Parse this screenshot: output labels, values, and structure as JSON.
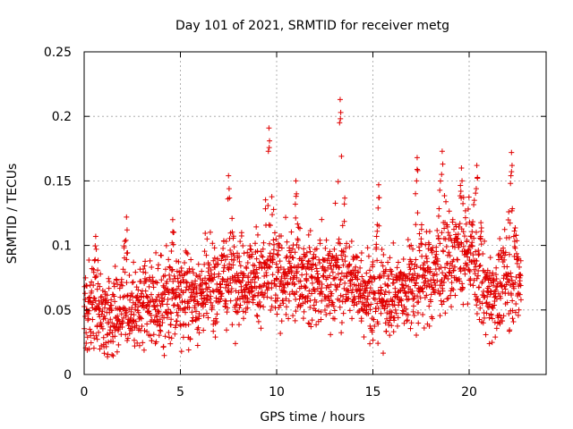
{
  "chart_data": {
    "type": "scatter",
    "title": "Day 101 of 2021, SRMTID for receiver metg",
    "xlabel": "GPS time / hours",
    "ylabel": "SRMTID / TECUs",
    "xlim": [
      0,
      24
    ],
    "ylim": [
      0,
      0.25
    ],
    "x_ticks": [
      0,
      5,
      10,
      15,
      20
    ],
    "x_tick_labels": [
      "0",
      "5",
      "10",
      "15",
      "20"
    ],
    "y_ticks": [
      0,
      0.05,
      0.1,
      0.15,
      0.2,
      0.25
    ],
    "y_tick_labels": [
      "0",
      "0.05",
      "0.1",
      "0.15",
      "0.2",
      "0.25"
    ],
    "grid": true,
    "marker": "+",
    "color": "#e00000",
    "series": [
      {
        "name": "SRMTID",
        "x_range": [
          0,
          22.7
        ],
        "point_count": 2200,
        "baseline_profile": [
          [
            0,
            0.055
          ],
          [
            1,
            0.045
          ],
          [
            2,
            0.05
          ],
          [
            3,
            0.05
          ],
          [
            4,
            0.055
          ],
          [
            5,
            0.06
          ],
          [
            6,
            0.062
          ],
          [
            7,
            0.07
          ],
          [
            8,
            0.075
          ],
          [
            9,
            0.075
          ],
          [
            10,
            0.075
          ],
          [
            11,
            0.075
          ],
          [
            12,
            0.072
          ],
          [
            13,
            0.075
          ],
          [
            14,
            0.072
          ],
          [
            15,
            0.062
          ],
          [
            16,
            0.06
          ],
          [
            17,
            0.07
          ],
          [
            18,
            0.075
          ],
          [
            19,
            0.085
          ],
          [
            20,
            0.09
          ],
          [
            21,
            0.06
          ],
          [
            22,
            0.07
          ],
          [
            22.7,
            0.07
          ]
        ],
        "spread": 0.022,
        "peaks": [
          {
            "x": 0.6,
            "y": 0.107
          },
          {
            "x": 2.2,
            "y": 0.122
          },
          {
            "x": 4.6,
            "y": 0.12
          },
          {
            "x": 7.5,
            "y": 0.154
          },
          {
            "x": 9.6,
            "y": 0.191
          },
          {
            "x": 11.0,
            "y": 0.15
          },
          {
            "x": 13.3,
            "y": 0.213
          },
          {
            "x": 15.3,
            "y": 0.147
          },
          {
            "x": 17.3,
            "y": 0.168
          },
          {
            "x": 18.6,
            "y": 0.173
          },
          {
            "x": 19.6,
            "y": 0.16
          },
          {
            "x": 20.4,
            "y": 0.162
          },
          {
            "x": 22.2,
            "y": 0.172
          }
        ],
        "minimum": 0.013
      }
    ]
  }
}
